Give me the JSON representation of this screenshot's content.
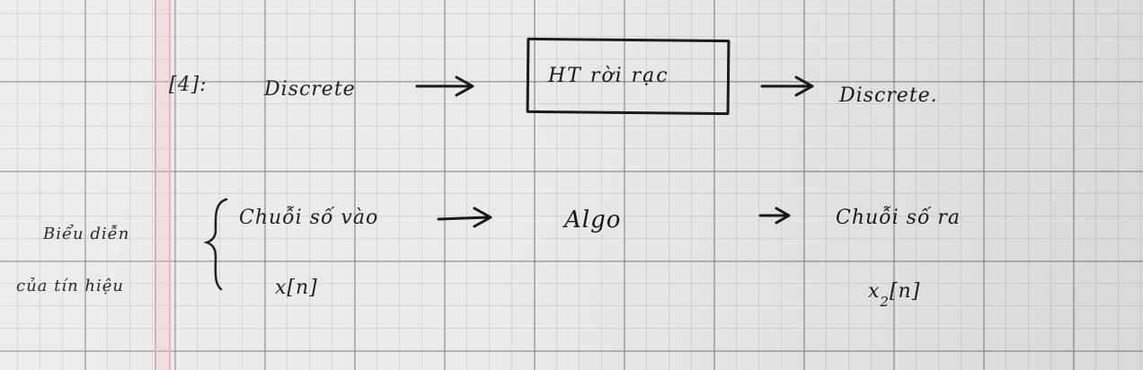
{
  "notes": {
    "line1": {
      "label": "[4]:",
      "input": "Discrete",
      "system_box": "HT rời rạc",
      "output": "Discrete."
    },
    "line2": {
      "side_note": [
        "Biểu diễn",
        "của tín hiệu"
      ],
      "input": "Chuỗi số vào",
      "input_symbol": "x[n]",
      "process": "Algo",
      "output": "Chuỗi số ra",
      "output_symbol_base": "x",
      "output_symbol_sub": "2",
      "output_symbol_index": "[n]"
    }
  },
  "colors": {
    "ink": "#161616",
    "margin_line": "#e7a3ad",
    "paper": "#ebeae8"
  }
}
